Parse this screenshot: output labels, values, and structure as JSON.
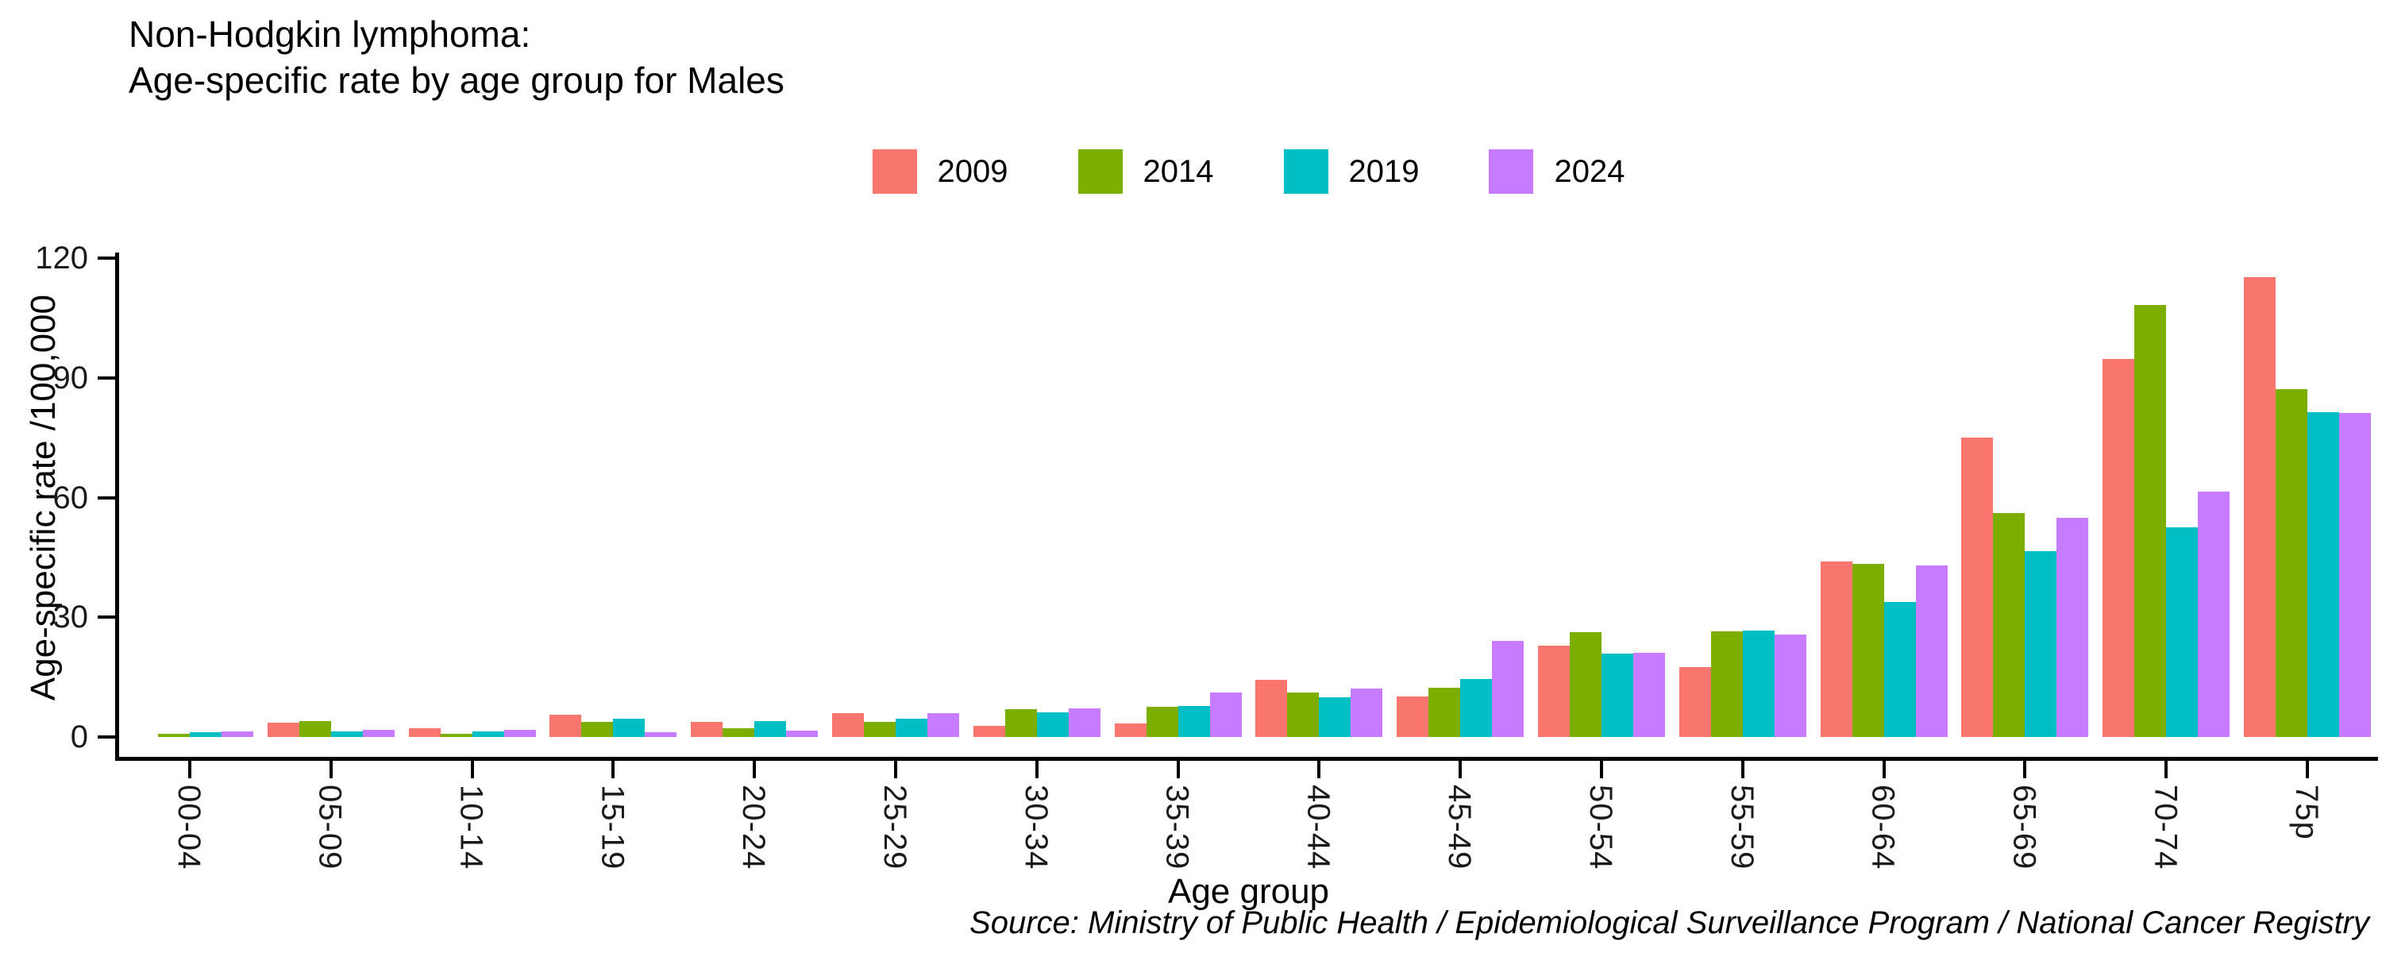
{
  "title_lines": {
    "line1": "Non-Hodgkin lymphoma:",
    "line2": "Age-specific rate by age group for Males"
  },
  "source": "Source: Ministry of Public Health / Epidemiological Surveillance Program / National Cancer Registry",
  "chart_data": {
    "type": "bar",
    "title": "Non-Hodgkin lymphoma: Age-specific rate by age group for Males",
    "xlabel": "Age group",
    "ylabel": "Age-specific rate /100,000",
    "legend_position": "top-center",
    "grid": false,
    "ylim": [
      0,
      120
    ],
    "yticks": [
      0,
      30,
      60,
      90,
      120
    ],
    "categories": [
      "00-04",
      "05-09",
      "10-14",
      "15-19",
      "20-24",
      "25-29",
      "30-34",
      "35-39",
      "40-44",
      "45-49",
      "50-54",
      "55-59",
      "60-64",
      "65-69",
      "70-74",
      "75p"
    ],
    "series": [
      {
        "name": "2009",
        "color": "#F8766D",
        "values": [
          0,
          3.6,
          2.1,
          5.6,
          3.7,
          6.0,
          2.8,
          3.3,
          14.3,
          10.2,
          22.9,
          17.6,
          44.0,
          75.1,
          94.7,
          115.3
        ]
      },
      {
        "name": "2014",
        "color": "#7CAE00",
        "values": [
          0.7,
          3.9,
          0.7,
          3.8,
          2.1,
          3.7,
          6.9,
          7.6,
          11.1,
          12.3,
          26.2,
          26.4,
          43.3,
          56.2,
          108.3,
          87.2
        ]
      },
      {
        "name": "2019",
        "color": "#00BFC4",
        "values": [
          1.1,
          1.4,
          1.3,
          4.5,
          4.0,
          4.6,
          6.2,
          7.8,
          10.0,
          14.5,
          20.8,
          26.7,
          33.9,
          46.6,
          52.5,
          81.3
        ]
      },
      {
        "name": "2024",
        "color": "#C77CFF",
        "values": [
          1.3,
          1.7,
          1.8,
          1.1,
          1.6,
          6.0,
          7.2,
          11.2,
          12.1,
          24.0,
          21.1,
          25.6,
          43.0,
          54.9,
          61.5,
          81.2
        ]
      }
    ]
  }
}
